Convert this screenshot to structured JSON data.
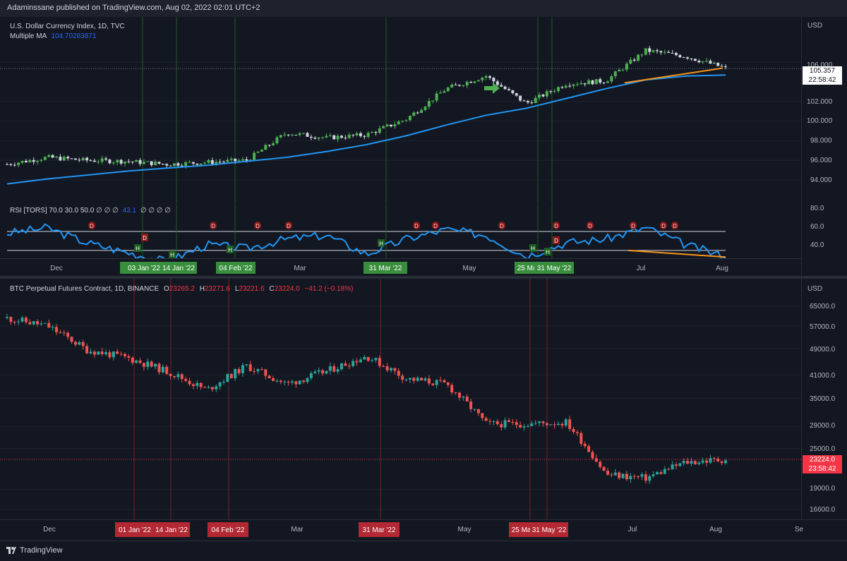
{
  "header": {
    "published": "Adaminssane published on TradingView.com, Aug 02, 2022 02:01 UTC+2"
  },
  "footer": {
    "brand": "TradingView"
  },
  "colors": {
    "up": "#4caf50",
    "down": "#d1d4dc",
    "btc_up": "#26a69a",
    "btc_down": "#ef5350",
    "ma": "#2196f3",
    "rsi": "#2196f3",
    "trend": "#f7931a"
  },
  "dxy": {
    "title": "U.S. Dollar Currency Index, 1D, TVC",
    "ma_label": "Multiple MA",
    "ma_value": "104.70283871",
    "currency": "USD",
    "price_tag": "105.357",
    "time_tag": "22:58:42"
  },
  "rsi": {
    "legend": "RSI [TORS] 70.0 30.0 50.0 ∅ ∅ ∅",
    "value": "43.1",
    "legend_tail": "∅ ∅ ∅ ∅",
    "levels": [
      "80.0",
      "60.0",
      "40.0"
    ]
  },
  "btc": {
    "title": "BTC Perpetual Futures Contract, 1D, BINANCE",
    "o": "23265.2",
    "h": "23271.6",
    "l": "23221.6",
    "c": "23224.0",
    "change": "−41.2 (−0.18%)",
    "currency": "USD",
    "price_tag": "23224.0",
    "time_tag": "23:58:42"
  },
  "chart_data": [
    {
      "type": "line",
      "title": "U.S. Dollar Currency Index, 1D, TVC",
      "xlabel": "",
      "ylabel": "USD",
      "x": [
        "Nov 26",
        "Dec 10",
        "Dec 24",
        "Jan 7",
        "Jan 21",
        "Feb 4",
        "Feb 18",
        "Mar 4",
        "Mar 18",
        "Apr 1",
        "Apr 15",
        "Apr 29",
        "May 13",
        "May 27",
        "Jun 10",
        "Jun 24",
        "Jul 8",
        "Jul 22",
        "Aug 1"
      ],
      "series": [
        {
          "name": "",
          "values": [
            95.6,
            96.3,
            96.0,
            95.9,
            95.6,
            95.8,
            96.0,
            98.8,
            98.3,
            98.6,
            100.2,
            103.3,
            104.6,
            101.8,
            103.8,
            104.1,
            107.2,
            106.6,
            105.4
          ]
        },
        {
          "name": "Multiple MA",
          "values": [
            93.6,
            94.1,
            94.5,
            94.9,
            95.2,
            95.5,
            95.9,
            96.3,
            96.9,
            97.6,
            98.5,
            99.6,
            100.6,
            101.3,
            102.3,
            103.3,
            104.2,
            104.6,
            104.7
          ]
        }
      ],
      "ylim": [
        93,
        108
      ],
      "y_ticks": [
        "94.000",
        "96.000",
        "98.000",
        "100.000",
        "102.000",
        "106.000"
      ],
      "x_ticks": [
        "Dec",
        "Mar",
        "May",
        "Jul",
        "Aug"
      ],
      "markers": [
        "03 Jan '22",
        "14 Jan '22",
        "04 Feb '22",
        "31 Mar '22",
        "25 May '22",
        "31 May '22"
      ]
    },
    {
      "type": "line",
      "title": "RSI [TORS]",
      "x": [
        "Nov 26",
        "Dec 10",
        "Dec 24",
        "Jan 7",
        "Jan 21",
        "Feb 4",
        "Feb 18",
        "Mar 4",
        "Mar 18",
        "Apr 1",
        "Apr 15",
        "Apr 29",
        "May 13",
        "May 27",
        "Jun 10",
        "Jun 24",
        "Jul 8",
        "Jul 22",
        "Aug 1"
      ],
      "series": [
        {
          "name": "",
          "values": [
            68,
            74,
            58,
            48,
            38,
            56,
            52,
            62,
            66,
            46,
            62,
            72,
            66,
            44,
            58,
            62,
            74,
            56,
            43.1
          ]
        }
      ],
      "ylim": [
        30,
        80
      ],
      "y_ticks": [
        "80.0",
        "60.0",
        "40.0"
      ],
      "levels": [
        70,
        50,
        30
      ]
    },
    {
      "type": "line",
      "title": "BTC Perpetual Futures Contract, 1D, BINANCE",
      "xlabel": "",
      "ylabel": "USD",
      "x": [
        "Nov 26",
        "Dec 10",
        "Dec 24",
        "Jan 7",
        "Jan 21",
        "Feb 4",
        "Feb 18",
        "Mar 4",
        "Mar 18",
        "Apr 1",
        "Apr 15",
        "Apr 29",
        "May 13",
        "May 27",
        "Jun 10",
        "Jun 24",
        "Jul 8",
        "Jul 22",
        "Aug 1"
      ],
      "series": [
        {
          "name": "",
          "values": [
            60000,
            57000,
            48500,
            46000,
            42000,
            37000,
            43500,
            38500,
            42000,
            46500,
            40000,
            38500,
            29500,
            29500,
            29800,
            21000,
            20500,
            22800,
            23224
          ]
        }
      ],
      "ylim": [
        15000,
        70000
      ],
      "y_ticks": [
        "65000.0",
        "57000.0",
        "49000.0",
        "41000.0",
        "35000.0",
        "29000.0",
        "25000.0",
        "19000.0",
        "16600.0"
      ],
      "x_ticks": [
        "Dec",
        "Mar",
        "May",
        "Jul",
        "Aug",
        "Se"
      ],
      "markers": [
        "01 Jan '22",
        "14 Jan '22",
        "04 Feb '22",
        "31 Mar '22",
        "25 May '22",
        "31 May '22"
      ]
    }
  ]
}
